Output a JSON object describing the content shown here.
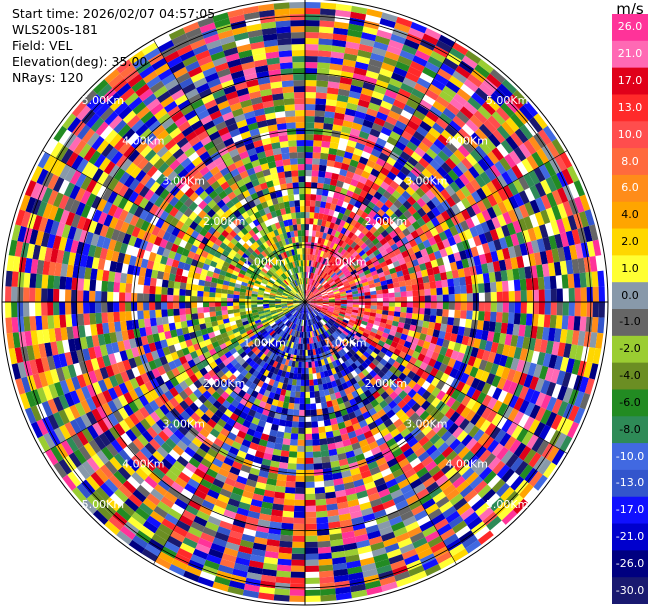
{
  "info": {
    "start_time": "Start time: 2026/02/07 04:57:05",
    "station": "WLS200s-181",
    "field": "Field: VEL",
    "elevation": "Elevation(deg): 35.00",
    "nrays": "NRays: 120"
  },
  "chart_data": {
    "type": "heatmap",
    "title": "",
    "projection": "polar-ppi",
    "field": "VEL",
    "elevation_deg": 35.0,
    "n_rays": 120,
    "max_range_km": 5.3,
    "range_rings_km": [
      1,
      2,
      3,
      4,
      5
    ],
    "ring_labels": [
      "1.00Km",
      "2.00Km",
      "3.00Km",
      "4.00Km",
      "5.00Km"
    ],
    "near_field_pattern": {
      "east_half": "red-magenta (positive, receding)",
      "west_half": "green-yellow (negative, approaching)",
      "south": "blue (strongly negative)"
    },
    "far_field_pattern": "noise (random colors)"
  },
  "colorbar": {
    "unit": "m/s",
    "labels": [
      "26.0",
      "21.0",
      "17.0",
      "13.0",
      "10.0",
      "8.0",
      "6.0",
      "4.0",
      "2.0",
      "1.0",
      "0.0",
      "-1.0",
      "-2.0",
      "-4.0",
      "-6.0",
      "-8.0",
      "-10.0",
      "-13.0",
      "-17.0",
      "-21.0",
      "-26.0",
      "-30.0"
    ],
    "colors": [
      "#ff3399",
      "#ff69b4",
      "#e0001a",
      "#ff2a2a",
      "#ff4d4d",
      "#ff6a3d",
      "#ff8c1a",
      "#ffa500",
      "#ffd700",
      "#ffff33",
      "#8899aa",
      "#666666",
      "#9acd32",
      "#6b8e23",
      "#228b22",
      "#2e8b57",
      "#4169e1",
      "#3355cc",
      "#1010ff",
      "#0000cd",
      "#000080",
      "#191970"
    ]
  }
}
